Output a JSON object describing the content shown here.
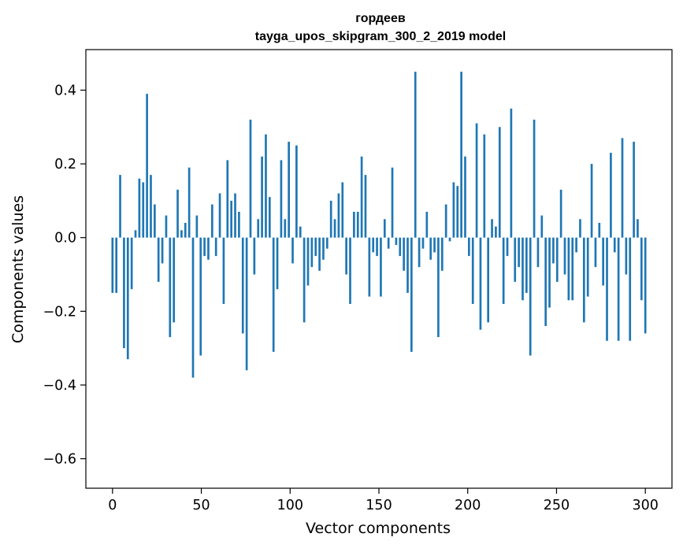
{
  "chart_data": {
    "type": "bar",
    "title_line1": "гордеев",
    "title_line2": "tayga_upos_skipgram_300_2_2019 model",
    "xlabel": "Vector components",
    "ylabel": "Components values",
    "xlim": [
      -15,
      315
    ],
    "ylim": [
      -0.68,
      0.51
    ],
    "grid": false,
    "bar_color": "#1f77b4",
    "x_ticks": [
      0,
      50,
      100,
      150,
      200,
      250,
      300
    ],
    "x_tick_labels": [
      "0",
      "50",
      "100",
      "150",
      "200",
      "250",
      "300"
    ],
    "y_ticks": [
      -0.6,
      -0.4,
      -0.2,
      0.0,
      0.2,
      0.4
    ],
    "y_tick_labels": [
      "−0.6",
      "−0.4",
      "−0.2",
      "0.0",
      "0.2",
      "0.4"
    ],
    "values": [
      -0.15,
      -0.15,
      0.17,
      -0.3,
      -0.33,
      -0.14,
      0.02,
      0.16,
      0.15,
      0.39,
      0.17,
      0.09,
      -0.12,
      -0.07,
      0.06,
      -0.27,
      -0.23,
      0.13,
      0.02,
      0.04,
      0.19,
      -0.38,
      0.06,
      -0.32,
      -0.05,
      -0.06,
      0.09,
      -0.05,
      0.12,
      -0.18,
      0.21,
      0.1,
      0.12,
      0.07,
      -0.26,
      -0.36,
      0.32,
      -0.1,
      0.05,
      0.22,
      0.28,
      0.11,
      -0.31,
      -0.14,
      0.21,
      0.05,
      0.26,
      -0.07,
      0.25,
      0.03,
      -0.23,
      -0.13,
      -0.08,
      -0.05,
      -0.09,
      -0.06,
      -0.03,
      0.1,
      0.05,
      0.12,
      0.15,
      -0.1,
      -0.18,
      0.07,
      0.07,
      0.22,
      0.17,
      -0.16,
      -0.04,
      -0.05,
      -0.16,
      0.05,
      -0.03,
      0.19,
      -0.02,
      -0.05,
      -0.09,
      -0.15,
      -0.31,
      0.45,
      -0.08,
      -0.03,
      0.07,
      -0.06,
      -0.04,
      -0.27,
      -0.09,
      0.09,
      -0.01,
      0.15,
      0.14,
      0.45,
      0.22,
      -0.05,
      -0.18,
      0.31,
      -0.25,
      0.28,
      -0.23,
      0.05,
      0.03,
      0.3,
      -0.18,
      -0.05,
      0.35,
      -0.12,
      -0.08,
      -0.17,
      -0.15,
      -0.32,
      0.32,
      -0.08,
      0.06,
      -0.24,
      -0.19,
      -0.07,
      -0.12,
      0.13,
      -0.1,
      -0.17,
      -0.17,
      -0.04,
      0.05,
      -0.23,
      -0.16,
      0.2,
      -0.08,
      0.04,
      -0.13,
      -0.28,
      0.23,
      -0.04,
      -0.28,
      0.27,
      -0.1,
      -0.28,
      0.26,
      0.05,
      -0.17,
      -0.26
    ]
  }
}
